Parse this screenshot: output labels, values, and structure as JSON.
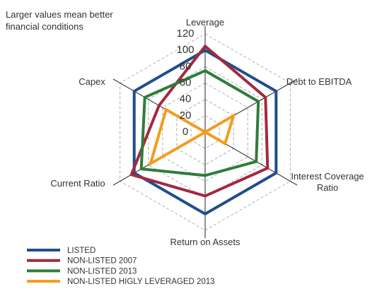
{
  "chart_data": {
    "type": "radar",
    "note": "Larger values mean better financial conditions",
    "categories": [
      "Leverage",
      "Debt to EBITDA",
      "Interest Coverage Ratio",
      "Return on Assets",
      "Current Ratio",
      "Capex"
    ],
    "series": [
      {
        "name": "LISTED",
        "color": "#1f4e8c",
        "values": [
          100,
          100,
          100,
          100,
          100,
          100
        ]
      },
      {
        "name": "NON-LISTED 2007",
        "color": "#a3293d",
        "values": [
          105,
          85,
          88,
          78,
          104,
          65
        ]
      },
      {
        "name": "NON-LISTED 2013",
        "color": "#2e7d3a",
        "values": [
          75,
          75,
          72,
          53,
          90,
          85
        ]
      },
      {
        "name": "NON-LISTED HIGLY LEVERAGED 2013",
        "color": "#f39c1f",
        "values": [
          0,
          40,
          28,
          0,
          77,
          55
        ]
      }
    ],
    "ylim": [
      0,
      120
    ],
    "yticks": [
      0,
      20,
      40,
      60,
      80,
      100,
      120
    ],
    "grid": true
  }
}
